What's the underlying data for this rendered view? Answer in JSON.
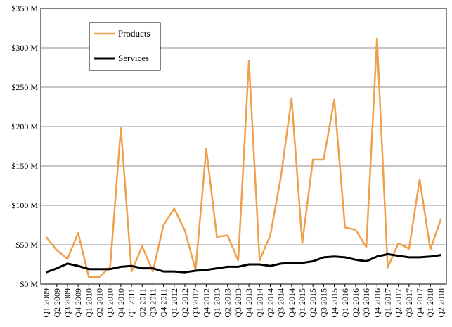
{
  "chart_data": {
    "type": "line",
    "title": "",
    "xlabel": "",
    "ylabel": "",
    "ylim": [
      0,
      350
    ],
    "y_ticks": [
      "$0 M",
      "$50 M",
      "$100 M",
      "$150 M",
      "$200 M",
      "$250 M",
      "$300 M",
      "$350 M"
    ],
    "y_tick_values": [
      0,
      50,
      100,
      150,
      200,
      250,
      300,
      350
    ],
    "grid": "horizontal",
    "legend_position": "top-left",
    "categories": [
      "Q1 2009",
      "Q2 2009",
      "Q3 2009",
      "Q4 2009",
      "Q1 2010",
      "Q2 2010",
      "Q3 2010",
      "Q4 2010",
      "Q1 2011",
      "Q2 2011",
      "Q3 2011",
      "Q4 2011",
      "Q1 2012",
      "Q2 2012",
      "Q3 2012",
      "Q4 2012",
      "Q1 2013",
      "Q2 2013",
      "Q3 2013",
      "Q4 2013",
      "Q1 2014",
      "Q2 2014",
      "Q3 2014",
      "Q4 2014",
      "Q1 2015",
      "Q2 2015",
      "Q3 2015",
      "Q4 2015",
      "Q1 2016",
      "Q2 2016",
      "Q3 2016",
      "Q4 2016",
      "Q1 2017",
      "Q2 2017",
      "Q3 2017",
      "Q4 2017",
      "Q1 2018",
      "Q2 2018"
    ],
    "series": [
      {
        "name": "Products",
        "color": "#F0A04B",
        "values": [
          60,
          43,
          32,
          65,
          9,
          9,
          22,
          198,
          16,
          48,
          16,
          75,
          96,
          68,
          18,
          172,
          60,
          62,
          30,
          283,
          30,
          62,
          136,
          236,
          52,
          158,
          158,
          234,
          72,
          69,
          47,
          312,
          21,
          52,
          45,
          133,
          44,
          83
        ]
      },
      {
        "name": "Services",
        "color": "#000000",
        "values": [
          15,
          20,
          26,
          23,
          19,
          19,
          19,
          22,
          23,
          20,
          20,
          16,
          16,
          15,
          17,
          18,
          20,
          22,
          22,
          25,
          25,
          23,
          26,
          27,
          27,
          29,
          34,
          35,
          34,
          31,
          29,
          35,
          38,
          36,
          34,
          34,
          35,
          37
        ]
      }
    ]
  }
}
